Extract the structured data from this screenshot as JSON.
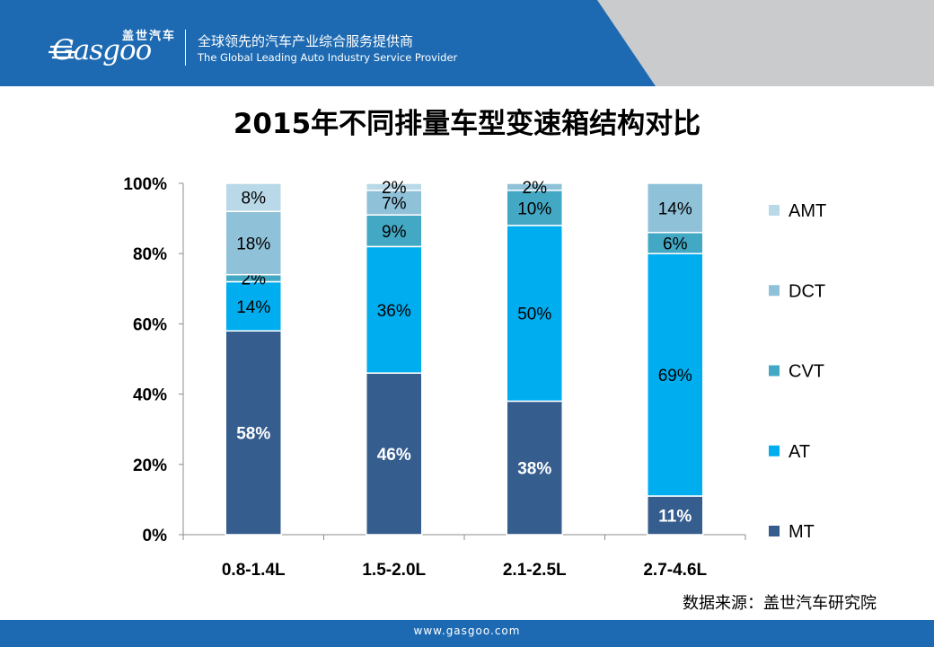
{
  "header": {
    "brand_cn": "盖世汽车",
    "brand_wordmark": "Gasgoo",
    "tagline_cn": "全球领先的汽车产业综合服务提供商",
    "tagline_en": "The Global Leading Auto Industry Service Provider",
    "colors": {
      "blue": "#1d6ab2",
      "gray": "#c9cbcd"
    }
  },
  "chart_data": {
    "type": "bar",
    "stacked": "percent",
    "title": "2015年不同排量车型变速箱结构对比",
    "categories": [
      "0.8-1.4L",
      "1.5-2.0L",
      "2.1-2.5L",
      "2.7-4.6L"
    ],
    "series": [
      {
        "name": "MT",
        "color": "#355d8e",
        "values": [
          58,
          46,
          38,
          11
        ],
        "labels": [
          "58%",
          "46%",
          "38%",
          "11%"
        ]
      },
      {
        "name": "AT",
        "color": "#00adef",
        "values": [
          14,
          36,
          50,
          69
        ],
        "labels": [
          "14%",
          "36%",
          "50%",
          "69%"
        ]
      },
      {
        "name": "CVT",
        "color": "#42a8c4",
        "values": [
          2,
          9,
          10,
          6
        ],
        "labels": [
          "2%",
          "9%",
          "10%",
          "6%"
        ]
      },
      {
        "name": "DCT",
        "color": "#8fc1d9",
        "values": [
          18,
          7,
          2,
          14
        ],
        "labels": [
          "18%",
          "7%",
          "2%",
          "14%"
        ]
      },
      {
        "name": "AMT",
        "color": "#b9d9e8",
        "values": [
          8,
          2,
          0,
          0
        ],
        "labels": [
          "8%",
          "2%",
          "",
          ""
        ]
      }
    ],
    "y_ticks": [
      "0%",
      "20%",
      "40%",
      "60%",
      "80%",
      "100%"
    ],
    "ylim": [
      0,
      100
    ],
    "legend_position": "right",
    "grid": false
  },
  "source_note": "数据来源：盖世汽车研究院",
  "footer": {
    "url": "www.gasgoo.com"
  }
}
